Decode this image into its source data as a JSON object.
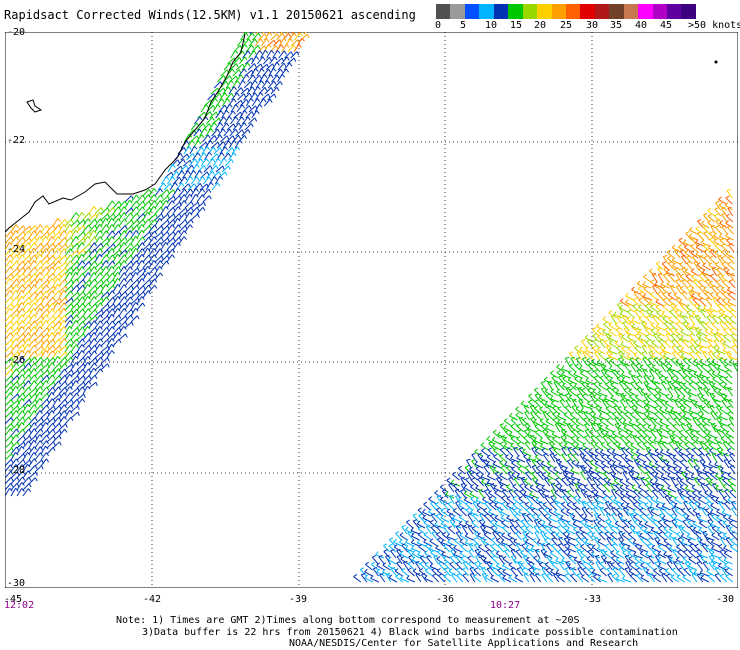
{
  "title": "Rapidsact Corrected Winds(12.5KM) v1.1 20150621 ascending",
  "legend": {
    "colors": [
      "#505050",
      "#9a9a9a",
      "#0050ff",
      "#00b4ff",
      "#0032b4",
      "#00c800",
      "#98d800",
      "#ffd000",
      "#ffa000",
      "#ff6000",
      "#e00000",
      "#b01818",
      "#704028",
      "#c87850",
      "#ff00ff",
      "#b000c8",
      "#6000a0",
      "#3c0080"
    ],
    "labels": [
      "0",
      "5",
      "10",
      "15",
      "20",
      "25",
      "30",
      "35",
      "40",
      "45",
      ">50 knots"
    ]
  },
  "axes": {
    "lat_labels": [
      "-20",
      "-22",
      "-24",
      "-26",
      "-28",
      "-30"
    ],
    "lon_labels": [
      "-45",
      "-42",
      "-39",
      "-36",
      "-33",
      "-30"
    ]
  },
  "times": [
    "12:02",
    "10:27"
  ],
  "notes": [
    "Note: 1) Times are GMT 2)Times along bottom correspond to measurement at ~20S",
    "3)Data buffer is 22 hrs from 20150621 4) Black wind barbs indicate possible contamination",
    "NOAA/NESDIS/Center for Satellite Applications and Research"
  ]
}
